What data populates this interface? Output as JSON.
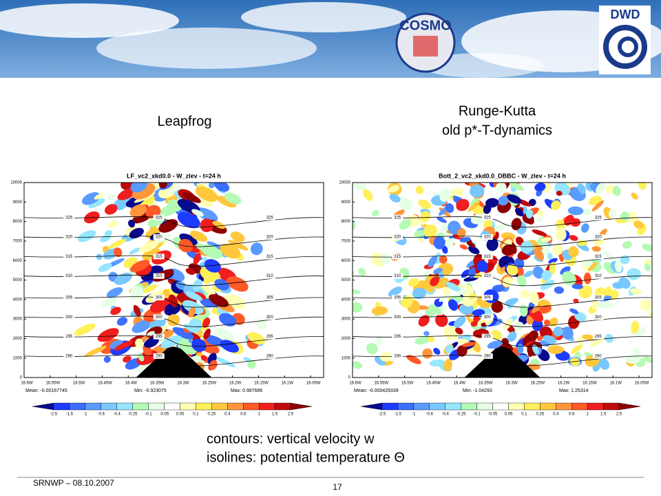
{
  "header": {
    "logo_left": "COSMO",
    "logo_right": "DWD"
  },
  "headings": {
    "left": "Leapfrog",
    "right": [
      "Runge-Kutta",
      "old p*-T-dynamics"
    ]
  },
  "panels": [
    {
      "title": "LF_vc2_xkd0.0 - W_zlev - t=24 h",
      "mean": "Mean: -0.00167745",
      "min": "Min: -0.923075",
      "max": "Max: 0.987686"
    },
    {
      "title": "Bott_2_vc2_xkd0.0_DBBC - W_zlev - t=24 h",
      "mean": "Mean: -0.000429339",
      "min": "Min: -1.04293",
      "max": "Max: 1.25314"
    }
  ],
  "yticks": [
    "0",
    "1000",
    "2000",
    "3000",
    "4000",
    "5000",
    "6000",
    "7000",
    "8000",
    "9000",
    "10000"
  ],
  "xticks": [
    "16.6W",
    "16.55W",
    "16.5W",
    "16.45W",
    "16.4W",
    "16.35W",
    "16.3W",
    "16.25W",
    "16.2W",
    "16.15W",
    "16.1W",
    "16.05W"
  ],
  "isolines": [
    "290",
    "295",
    "300",
    "305",
    "310",
    "315",
    "320",
    "325"
  ],
  "colorbar": [
    "-2.5",
    "-1.5",
    "-1",
    "-0.6",
    "-0.4",
    "-0.25",
    "-0.1",
    "-0.05",
    "0.05",
    "0.1",
    "0.25",
    "0.4",
    "0.6",
    "1",
    "1.5",
    "2.5"
  ],
  "caption": [
    "contours: vertical velocity w",
    "isolines:   potential temperature Θ"
  ],
  "footer": {
    "left": "SRNWP  – 08.10.2007",
    "page": "17"
  }
}
